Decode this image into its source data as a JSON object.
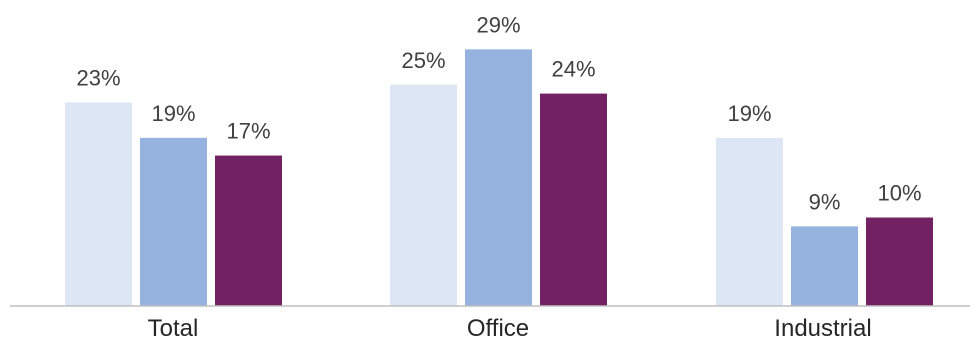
{
  "chart_data": {
    "type": "bar",
    "title": "",
    "xlabel": "",
    "ylabel": "",
    "categories": [
      "Total",
      "Office",
      "Industrial"
    ],
    "series": [
      {
        "values": [
          23,
          25,
          19
        ],
        "color": "#dce6f4",
        "labels": [
          "23%",
          "25%",
          "19%"
        ]
      },
      {
        "values": [
          19,
          29,
          9
        ],
        "color": "#95b3de",
        "labels": [
          "19%",
          "29%",
          "9%"
        ]
      },
      {
        "values": [
          17,
          24,
          10
        ],
        "color": "#722263",
        "labels": [
          "17%",
          "24%",
          "10%"
        ]
      }
    ],
    "value_suffix": "%",
    "ylim": [
      0,
      35
    ],
    "grid": false,
    "legend": "none",
    "baseline_color": "#bfbfbf"
  }
}
